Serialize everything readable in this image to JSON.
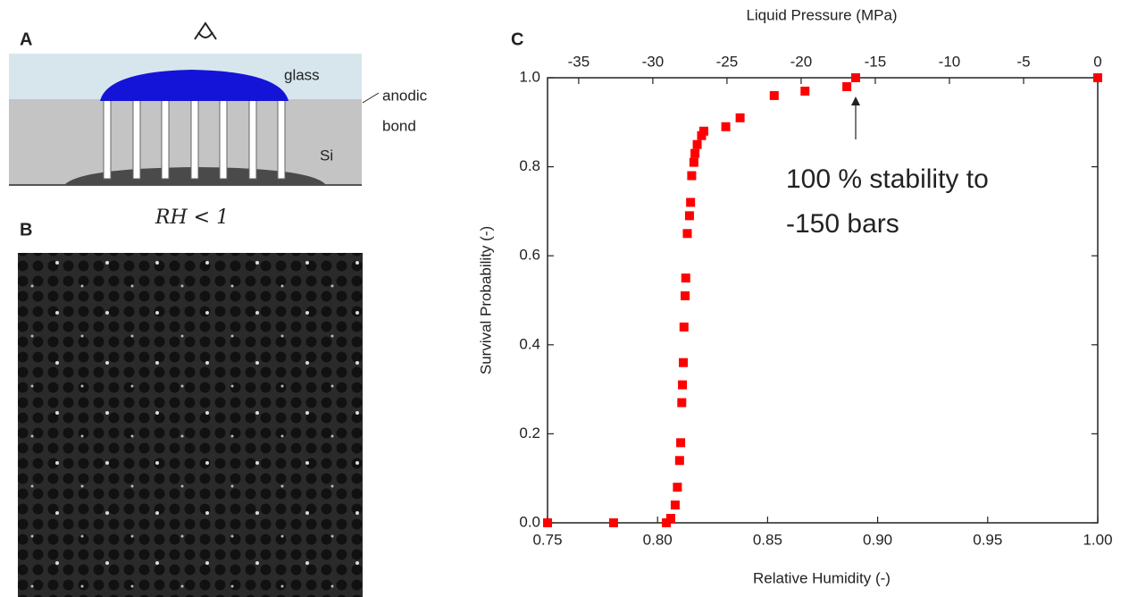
{
  "panel_a": {
    "label": "A",
    "glass": "glass",
    "bond": [
      "anodic",
      "bond"
    ],
    "si": "Si"
  },
  "panel_b": {
    "label": "B",
    "caption": "RH < 1"
  },
  "chart_data": {
    "type": "scatter",
    "label": "C",
    "x2label": "Liquid Pressure (MPa)",
    "xlabel": "Relative Humidity (-)",
    "ylabel": "Survival Probability (-)",
    "annotation": [
      "100 % stability to",
      "-150 bars"
    ],
    "color": "#ff0000",
    "x": [
      0.75,
      0.78,
      0.804,
      0.806,
      0.808,
      0.809,
      0.81,
      0.8105,
      0.811,
      0.8113,
      0.8117,
      0.812,
      0.8125,
      0.8128,
      0.8135,
      0.8145,
      0.815,
      0.8155,
      0.8165,
      0.817,
      0.818,
      0.82,
      0.821,
      0.831,
      0.8375,
      0.853,
      0.867,
      0.886,
      0.89,
      1.0
    ],
    "values": [
      0,
      0,
      0,
      0.01,
      0.04,
      0.08,
      0.14,
      0.18,
      0.27,
      0.31,
      0.36,
      0.44,
      0.51,
      0.55,
      0.65,
      0.69,
      0.72,
      0.78,
      0.81,
      0.83,
      0.85,
      0.87,
      0.88,
      0.89,
      0.91,
      0.96,
      0.97,
      0.98,
      1.0,
      1.0
    ],
    "xlim": [
      0.75,
      1.0
    ],
    "xticks": [
      0.75,
      {
        "value": 0.8,
        "label": "0.80"
      },
      0.85,
      {
        "value": 0.9,
        "label": "0.90"
      },
      0.95,
      {
        "value": 1.0,
        "label": "1.00"
      }
    ],
    "ylim": [
      0,
      1.0
    ],
    "yticks": [
      {
        "value": 0,
        "label": "0.0"
      },
      0.2,
      0.4,
      0.6,
      0.8,
      {
        "value": 1.0,
        "label": "1.0"
      }
    ],
    "x2lim": [
      -37.1,
      0
    ],
    "x2ticks": [
      -35,
      -30,
      -25,
      -20,
      -15,
      -10,
      -5,
      0
    ]
  }
}
